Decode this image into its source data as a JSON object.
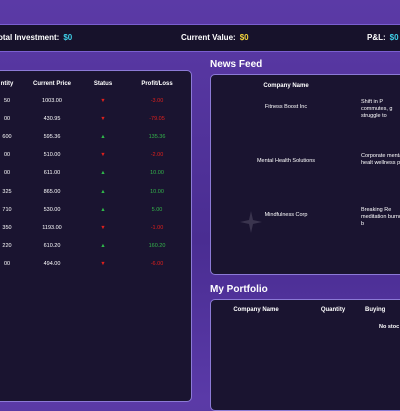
{
  "header": {
    "total_investment_label": "otal Investment:",
    "total_investment_value": "$0",
    "current_value_label": "Current Value:",
    "current_value_value": "$0",
    "pl_label": "P&L:",
    "pl_value": "$0"
  },
  "market_table": {
    "headers": [
      "ntity",
      "Current Price",
      "Status",
      "Profit/Loss"
    ],
    "rows": [
      {
        "qty": "50",
        "price": "1003.00",
        "status": "down",
        "pl": "-3.00",
        "pl_sign": "neg"
      },
      {
        "qty": "00",
        "price": "430.95",
        "status": "down",
        "pl": "-79.05",
        "pl_sign": "neg"
      },
      {
        "qty": "600",
        "price": "595.36",
        "status": "up",
        "pl": "135.36",
        "pl_sign": "pos"
      },
      {
        "qty": "00",
        "price": "510.00",
        "status": "down",
        "pl": "-2.00",
        "pl_sign": "neg"
      },
      {
        "qty": "00",
        "price": "611.00",
        "status": "up",
        "pl": "10.00",
        "pl_sign": "pos"
      },
      {
        "qty": "325",
        "price": "865.00",
        "status": "up",
        "pl": "10.00",
        "pl_sign": "pos"
      },
      {
        "qty": "710",
        "price": "530.00",
        "status": "up",
        "pl": "5.00",
        "pl_sign": "pos"
      },
      {
        "qty": "350",
        "price": "1193.00",
        "status": "down",
        "pl": "-1.00",
        "pl_sign": "neg"
      },
      {
        "qty": "220",
        "price": "610.20",
        "status": "up",
        "pl": "160.20",
        "pl_sign": "pos"
      },
      {
        "qty": "00",
        "price": "494.00",
        "status": "down",
        "pl": "-6.00",
        "pl_sign": "neg"
      }
    ],
    "arrow_up": "▲",
    "arrow_down": "▼"
  },
  "news_feed": {
    "title": "News Feed",
    "headers": [
      "Company Name",
      ""
    ],
    "rows": [
      {
        "company": "Fitness Boost Inc",
        "headline": "Shift in P commutes, g struggle to"
      },
      {
        "company": "Mental Health Solutions",
        "headline": "Corporate mental healt wellness pro"
      },
      {
        "company": "Mindfulness Corp",
        "headline": "Breaking Re meditation burnout b"
      }
    ]
  },
  "portfolio": {
    "title": "My Portfolio",
    "headers": [
      "Company Name",
      "Quantity",
      "Buying"
    ],
    "empty_text": "No stoc"
  },
  "colors": {
    "background": "#4a2d92",
    "panel": "#1a1430",
    "accent_border": "#8c7ad6",
    "cyan": "#3fd0e8",
    "yellow": "#f3d43c",
    "up": "#2fb84a",
    "down": "#e0201c"
  },
  "icons": {
    "sparkle": "sparkle-icon"
  }
}
